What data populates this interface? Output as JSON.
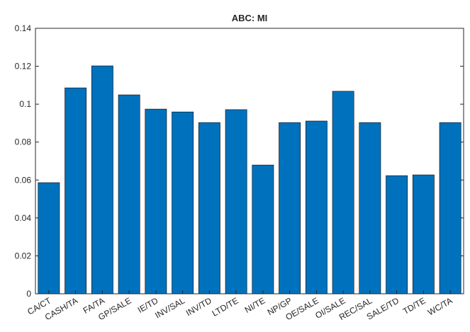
{
  "chart_data": {
    "type": "bar",
    "title": "ABC: MI",
    "categories": [
      "CA/CT",
      "CASH/TA",
      "FA/TA",
      "GP/SALE",
      "IE/TD",
      "INV/SAL",
      "INV/TD",
      "LTD/TE",
      "NI/TE",
      "NP/GP",
      "OE/SALE",
      "OI/SALE",
      "REC/SAL",
      "SALE/TD",
      "TD/TE",
      "WC/TA"
    ],
    "values": [
      0.0586,
      0.1086,
      0.1202,
      0.1049,
      0.0974,
      0.0959,
      0.0903,
      0.0971,
      0.0679,
      0.0903,
      0.0911,
      0.1068,
      0.0903,
      0.0623,
      0.0627,
      0.0903
    ],
    "color": "#0072bd",
    "ylim": [
      0,
      0.14
    ],
    "yticks": [
      0,
      0.02,
      0.04,
      0.06,
      0.08,
      0.1,
      0.12,
      0.14
    ],
    "grid": false
  }
}
